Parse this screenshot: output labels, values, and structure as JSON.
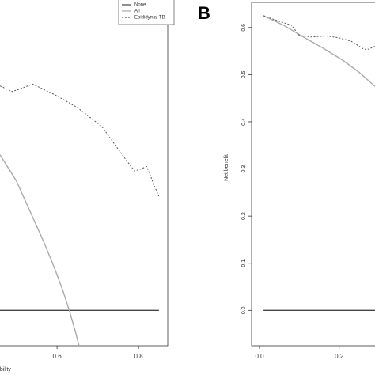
{
  "chart_data": [
    {
      "type": "line",
      "xlabel": "ability",
      "xlim": [
        0.46,
        0.86
      ],
      "ylim": [
        -0.075,
        0.65
      ],
      "xticks": [
        0.6,
        0.8
      ],
      "legend": "top-right",
      "series": [
        {
          "name": "None",
          "color": "#444444",
          "style": "solid",
          "x": [
            0.46,
            0.85
          ],
          "values": [
            0,
            0
          ]
        },
        {
          "name": "All",
          "color": "#aaaaaa",
          "style": "solid",
          "x": [
            0.46,
            0.5,
            0.537,
            0.57,
            0.595,
            0.615,
            0.63,
            0.645,
            0.654
          ],
          "values": [
            0.33,
            0.275,
            0.204,
            0.14,
            0.087,
            0.04,
            0,
            -0.045,
            -0.075
          ]
        },
        {
          "name": "Epididymal TB",
          "color": "#555555",
          "style": "dotted",
          "x": [
            0.46,
            0.49,
            0.51,
            0.54,
            0.6,
            0.65,
            0.71,
            0.76,
            0.79,
            0.8,
            0.82,
            0.85
          ],
          "values": [
            0.476,
            0.464,
            0.47,
            0.48,
            0.455,
            0.43,
            0.39,
            0.33,
            0.296,
            0.298,
            0.305,
            0.241
          ]
        }
      ]
    },
    {
      "type": "line",
      "panel_label": "B",
      "ylabel": "Net benefit",
      "xlim": [
        -0.02,
        0.29
      ],
      "ylim": [
        -0.075,
        0.65
      ],
      "xticks": [
        {
          "value": 0,
          "label": "0.0"
        },
        0.2
      ],
      "yticks": [
        {
          "value": 0,
          "label": "0.0"
        },
        0.1,
        0.2,
        0.3,
        0.4,
        0.5,
        0.6
      ],
      "series": [
        {
          "color": "#444444",
          "style": "solid",
          "x": [
            0.01,
            0.29
          ],
          "values": [
            0,
            0
          ]
        },
        {
          "color": "#aaaaaa",
          "style": "solid",
          "x": [
            0.01,
            0.06,
            0.11,
            0.16,
            0.21,
            0.25,
            0.29
          ],
          "values": [
            0.625,
            0.605,
            0.58,
            0.556,
            0.53,
            0.505,
            0.475
          ]
        },
        {
          "color": "#555555",
          "style": "dotted",
          "x": [
            0.01,
            0.05,
            0.08,
            0.1,
            0.13,
            0.17,
            0.2,
            0.23,
            0.26,
            0.27,
            0.29
          ],
          "values": [
            0.625,
            0.613,
            0.605,
            0.583,
            0.58,
            0.582,
            0.578,
            0.571,
            0.555,
            0.553,
            0.56
          ]
        }
      ]
    }
  ]
}
